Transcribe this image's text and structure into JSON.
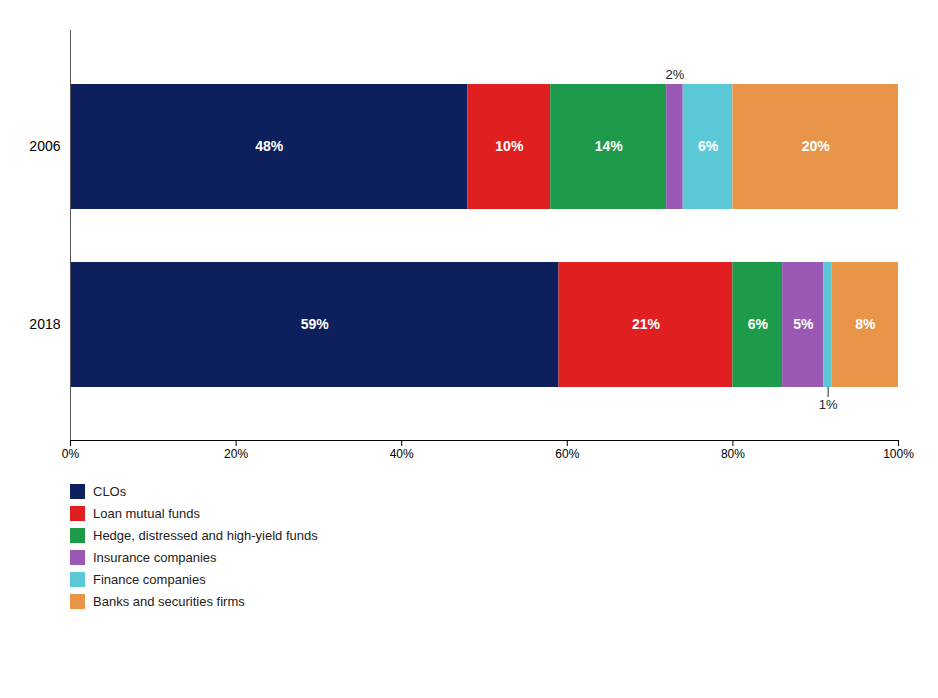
{
  "chart_data": {
    "type": "bar",
    "orientation": "horizontal",
    "stacked": true,
    "categories": [
      "2006",
      "2018"
    ],
    "series": [
      {
        "name": "CLOs",
        "color": "#0d1f5c",
        "values": [
          48,
          59
        ],
        "value_labels": [
          "48%",
          "59%"
        ]
      },
      {
        "name": "Loan mutual funds",
        "color": "#e02020",
        "values": [
          10,
          21
        ],
        "value_labels": [
          "10%",
          "21%"
        ]
      },
      {
        "name": "Hedge, distressed and high-yield funds",
        "color": "#1e9b4a",
        "values": [
          14,
          6
        ],
        "value_labels": [
          "14%",
          "6%"
        ]
      },
      {
        "name": "Insurance companies",
        "color": "#9b59b6",
        "values": [
          2,
          5
        ],
        "value_labels": [
          null,
          "5%"
        ]
      },
      {
        "name": "Finance companies",
        "color": "#5bc8d8",
        "values": [
          6,
          1
        ],
        "value_labels": [
          "6%",
          null
        ]
      },
      {
        "name": "Banks and securities firms",
        "color": "#e8954a",
        "values": [
          20,
          8
        ],
        "value_labels": [
          "20%",
          "8%"
        ]
      }
    ],
    "annotations": [
      {
        "text": "2%",
        "category": "2006",
        "series": "Insurance companies"
      },
      {
        "text": "1%",
        "category": "2018",
        "series": "Finance companies"
      }
    ],
    "xlim": [
      0,
      100
    ],
    "xticks": [
      {
        "value": 0,
        "label": "0%"
      },
      {
        "value": 20,
        "label": "20%"
      },
      {
        "value": 40,
        "label": "40%"
      },
      {
        "value": 60,
        "label": "60%"
      },
      {
        "value": 80,
        "label": "80%"
      },
      {
        "value": 100,
        "label": "100%"
      }
    ],
    "data_labels": true,
    "grid": false,
    "legend": "bottom"
  }
}
